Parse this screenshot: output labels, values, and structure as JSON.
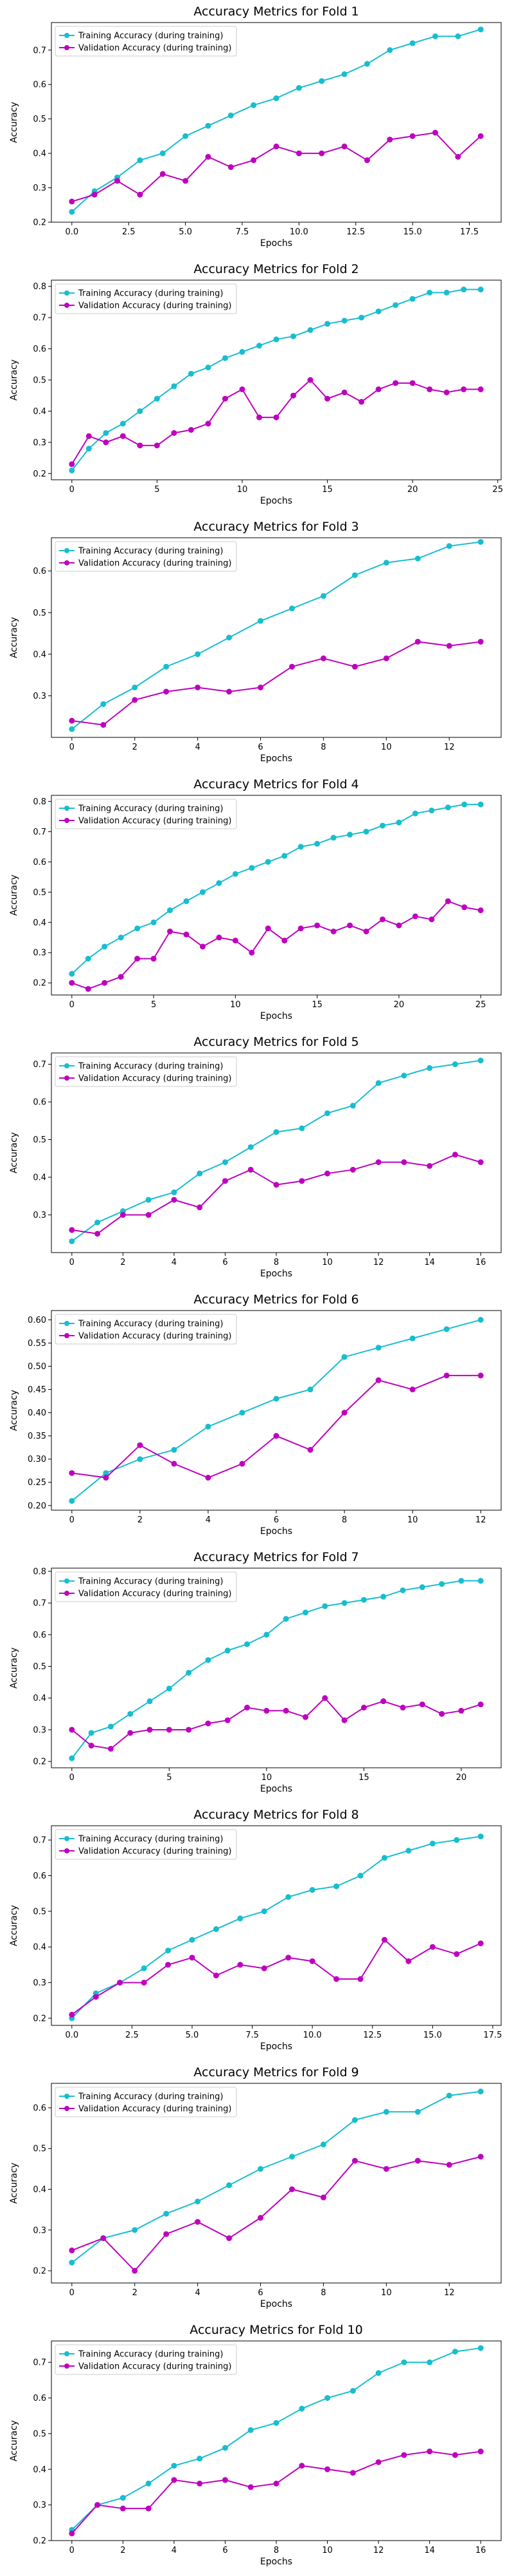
{
  "colors": {
    "train": "#17becf",
    "val": "#bf00bf"
  },
  "legend": {
    "train": "Training Accuracy (during training)",
    "val": "Validation Accuracy (during training)",
    "position": "upper-left"
  },
  "chart_data": [
    {
      "type": "line",
      "title": "Accuracy Metrics for Fold 1",
      "xlabel": "Epochs",
      "ylabel": "Accuracy",
      "xlim": [
        -0.9,
        18.9
      ],
      "ylim": [
        0.2,
        0.78
      ],
      "xticks": [
        0,
        2.5,
        5,
        7.5,
        10,
        12.5,
        15,
        17.5
      ],
      "xtick_labels": [
        "0.0",
        "2.5",
        "5.0",
        "7.5",
        "10.0",
        "12.5",
        "15.0",
        "17.5"
      ],
      "yticks": [
        0.2,
        0.3,
        0.4,
        0.5,
        0.6,
        0.7
      ],
      "ytick_labels": [
        "0.2",
        "0.3",
        "0.4",
        "0.5",
        "0.6",
        "0.7"
      ],
      "grid": false,
      "x": [
        0,
        1,
        2,
        3,
        4,
        5,
        6,
        7,
        8,
        9,
        10,
        11,
        12,
        13,
        14,
        15,
        16,
        17,
        18
      ],
      "series": [
        {
          "name": "Training Accuracy (during training)",
          "values": [
            0.23,
            0.29,
            0.33,
            0.38,
            0.4,
            0.45,
            0.48,
            0.51,
            0.54,
            0.56,
            0.59,
            0.61,
            0.63,
            0.66,
            0.7,
            0.72,
            0.74,
            0.74,
            0.76
          ]
        },
        {
          "name": "Validation Accuracy (during training)",
          "values": [
            0.26,
            0.28,
            0.32,
            0.28,
            0.34,
            0.32,
            0.39,
            0.36,
            0.38,
            0.42,
            0.4,
            0.4,
            0.42,
            0.38,
            0.44,
            0.45,
            0.46,
            0.39,
            0.45
          ]
        }
      ]
    },
    {
      "type": "line",
      "title": "Accuracy Metrics for Fold 2",
      "xlabel": "Epochs",
      "ylabel": "Accuracy",
      "xlim": [
        -1.2,
        25.2
      ],
      "ylim": [
        0.18,
        0.82
      ],
      "xticks": [
        0,
        5,
        10,
        15,
        20,
        25
      ],
      "xtick_labels": [
        "0",
        "5",
        "10",
        "15",
        "20",
        "25"
      ],
      "yticks": [
        0.2,
        0.3,
        0.4,
        0.5,
        0.6,
        0.7,
        0.8
      ],
      "ytick_labels": [
        "0.2",
        "0.3",
        "0.4",
        "0.5",
        "0.6",
        "0.7",
        "0.8"
      ],
      "grid": false,
      "x": [
        0,
        1,
        2,
        3,
        4,
        5,
        6,
        7,
        8,
        9,
        10,
        11,
        12,
        13,
        14,
        15,
        16,
        17,
        18,
        19,
        20,
        21,
        22,
        23,
        24
      ],
      "series": [
        {
          "name": "Training Accuracy (during training)",
          "values": [
            0.21,
            0.28,
            0.33,
            0.36,
            0.4,
            0.44,
            0.48,
            0.52,
            0.54,
            0.57,
            0.59,
            0.61,
            0.63,
            0.64,
            0.66,
            0.68,
            0.69,
            0.7,
            0.72,
            0.74,
            0.76,
            0.78,
            0.78,
            0.79,
            0.79
          ]
        },
        {
          "name": "Validation Accuracy (during training)",
          "values": [
            0.23,
            0.32,
            0.3,
            0.32,
            0.29,
            0.29,
            0.33,
            0.34,
            0.36,
            0.44,
            0.47,
            0.38,
            0.38,
            0.45,
            0.5,
            0.44,
            0.46,
            0.43,
            0.47,
            0.49,
            0.49,
            0.47,
            0.46,
            0.47,
            0.47
          ]
        }
      ]
    },
    {
      "type": "line",
      "title": "Accuracy Metrics for Fold 3",
      "xlabel": "Epochs",
      "ylabel": "Accuracy",
      "xlim": [
        -0.65,
        13.65
      ],
      "ylim": [
        0.2,
        0.68
      ],
      "xticks": [
        0,
        2,
        4,
        6,
        8,
        10,
        12
      ],
      "xtick_labels": [
        "0",
        "2",
        "4",
        "6",
        "8",
        "10",
        "12"
      ],
      "yticks": [
        0.3,
        0.4,
        0.5,
        0.6
      ],
      "ytick_labels": [
        "0.3",
        "0.4",
        "0.5",
        "0.6"
      ],
      "grid": false,
      "x": [
        0,
        1,
        2,
        3,
        4,
        5,
        6,
        7,
        8,
        9,
        10,
        11,
        12,
        13
      ],
      "series": [
        {
          "name": "Training Accuracy (during training)",
          "values": [
            0.22,
            0.28,
            0.32,
            0.37,
            0.4,
            0.44,
            0.48,
            0.51,
            0.54,
            0.59,
            0.62,
            0.63,
            0.66,
            0.67
          ]
        },
        {
          "name": "Validation Accuracy (during training)",
          "values": [
            0.24,
            0.23,
            0.29,
            0.31,
            0.32,
            0.31,
            0.32,
            0.37,
            0.39,
            0.37,
            0.39,
            0.43,
            0.42,
            0.43
          ]
        }
      ]
    },
    {
      "type": "line",
      "title": "Accuracy Metrics for Fold 4",
      "xlabel": "Epochs",
      "ylabel": "Accuracy",
      "xlim": [
        -1.25,
        26.25
      ],
      "ylim": [
        0.16,
        0.82
      ],
      "xticks": [
        0,
        5,
        10,
        15,
        20,
        25
      ],
      "xtick_labels": [
        "0",
        "5",
        "10",
        "15",
        "20",
        "25"
      ],
      "yticks": [
        0.2,
        0.3,
        0.4,
        0.5,
        0.6,
        0.7,
        0.8
      ],
      "ytick_labels": [
        "0.2",
        "0.3",
        "0.4",
        "0.5",
        "0.6",
        "0.7",
        "0.8"
      ],
      "grid": false,
      "x": [
        0,
        1,
        2,
        3,
        4,
        5,
        6,
        7,
        8,
        9,
        10,
        11,
        12,
        13,
        14,
        15,
        16,
        17,
        18,
        19,
        20,
        21,
        22,
        23,
        24,
        25
      ],
      "series": [
        {
          "name": "Training Accuracy (during training)",
          "values": [
            0.23,
            0.28,
            0.32,
            0.35,
            0.38,
            0.4,
            0.44,
            0.47,
            0.5,
            0.53,
            0.56,
            0.58,
            0.6,
            0.62,
            0.65,
            0.66,
            0.68,
            0.69,
            0.7,
            0.72,
            0.73,
            0.76,
            0.77,
            0.78,
            0.79,
            0.79
          ]
        },
        {
          "name": "Validation Accuracy (during training)",
          "values": [
            0.2,
            0.18,
            0.2,
            0.22,
            0.28,
            0.28,
            0.37,
            0.36,
            0.32,
            0.35,
            0.34,
            0.3,
            0.38,
            0.34,
            0.38,
            0.39,
            0.37,
            0.39,
            0.37,
            0.41,
            0.39,
            0.42,
            0.41,
            0.47,
            0.45,
            0.44
          ]
        }
      ]
    },
    {
      "type": "line",
      "title": "Accuracy Metrics for Fold 5",
      "xlabel": "Epochs",
      "ylabel": "Accuracy",
      "xlim": [
        -0.8,
        16.8
      ],
      "ylim": [
        0.2,
        0.73
      ],
      "xticks": [
        0,
        2,
        4,
        6,
        8,
        10,
        12,
        14,
        16
      ],
      "xtick_labels": [
        "0",
        "2",
        "4",
        "6",
        "8",
        "10",
        "12",
        "14",
        "16"
      ],
      "yticks": [
        0.3,
        0.4,
        0.5,
        0.6,
        0.7
      ],
      "ytick_labels": [
        "0.3",
        "0.4",
        "0.5",
        "0.6",
        "0.7"
      ],
      "grid": false,
      "x": [
        0,
        1,
        2,
        3,
        4,
        5,
        6,
        7,
        8,
        9,
        10,
        11,
        12,
        13,
        14,
        15,
        16
      ],
      "series": [
        {
          "name": "Training Accuracy (during training)",
          "values": [
            0.23,
            0.28,
            0.31,
            0.34,
            0.36,
            0.41,
            0.44,
            0.48,
            0.52,
            0.53,
            0.57,
            0.59,
            0.65,
            0.67,
            0.69,
            0.7,
            0.71
          ]
        },
        {
          "name": "Validation Accuracy (during training)",
          "values": [
            0.26,
            0.25,
            0.3,
            0.3,
            0.34,
            0.32,
            0.39,
            0.42,
            0.38,
            0.39,
            0.41,
            0.42,
            0.44,
            0.44,
            0.43,
            0.46,
            0.44
          ]
        }
      ]
    },
    {
      "type": "line",
      "title": "Accuracy Metrics for Fold 6",
      "xlabel": "Epochs",
      "ylabel": "Accuracy",
      "xlim": [
        -0.6,
        12.6
      ],
      "ylim": [
        0.19,
        0.62
      ],
      "xticks": [
        0,
        2,
        4,
        6,
        8,
        10,
        12
      ],
      "xtick_labels": [
        "0",
        "2",
        "4",
        "6",
        "8",
        "10",
        "12"
      ],
      "yticks": [
        0.2,
        0.25,
        0.3,
        0.35,
        0.4,
        0.45,
        0.5,
        0.55,
        0.6
      ],
      "ytick_labels": [
        "0.20",
        "0.25",
        "0.30",
        "0.35",
        "0.40",
        "0.45",
        "0.50",
        "0.55",
        "0.60"
      ],
      "grid": false,
      "x": [
        0,
        1,
        2,
        3,
        4,
        5,
        6,
        7,
        8,
        9,
        10,
        11,
        12
      ],
      "series": [
        {
          "name": "Training Accuracy (during training)",
          "values": [
            0.21,
            0.27,
            0.3,
            0.32,
            0.37,
            0.4,
            0.43,
            0.45,
            0.52,
            0.54,
            0.56,
            0.58,
            0.6
          ]
        },
        {
          "name": "Validation Accuracy (during training)",
          "values": [
            0.27,
            0.26,
            0.33,
            0.29,
            0.26,
            0.29,
            0.35,
            0.32,
            0.4,
            0.47,
            0.45,
            0.48,
            0.48
          ]
        }
      ]
    },
    {
      "type": "line",
      "title": "Accuracy Metrics for Fold 7",
      "xlabel": "Epochs",
      "ylabel": "Accuracy",
      "xlim": [
        -1.05,
        22.05
      ],
      "ylim": [
        0.18,
        0.81
      ],
      "xticks": [
        0,
        5,
        10,
        15,
        20
      ],
      "xtick_labels": [
        "0",
        "5",
        "10",
        "15",
        "20"
      ],
      "yticks": [
        0.2,
        0.3,
        0.4,
        0.5,
        0.6,
        0.7,
        0.8
      ],
      "ytick_labels": [
        "0.2",
        "0.3",
        "0.4",
        "0.5",
        "0.6",
        "0.7",
        "0.8"
      ],
      "grid": false,
      "x": [
        0,
        1,
        2,
        3,
        4,
        5,
        6,
        7,
        8,
        9,
        10,
        11,
        12,
        13,
        14,
        15,
        16,
        17,
        18,
        19,
        20,
        21
      ],
      "series": [
        {
          "name": "Training Accuracy (during training)",
          "values": [
            0.21,
            0.29,
            0.31,
            0.35,
            0.39,
            0.43,
            0.48,
            0.52,
            0.55,
            0.57,
            0.6,
            0.65,
            0.67,
            0.69,
            0.7,
            0.71,
            0.72,
            0.74,
            0.75,
            0.76,
            0.77,
            0.77
          ]
        },
        {
          "name": "Validation Accuracy (during training)",
          "values": [
            0.3,
            0.25,
            0.24,
            0.29,
            0.3,
            0.3,
            0.3,
            0.32,
            0.33,
            0.37,
            0.36,
            0.36,
            0.34,
            0.4,
            0.33,
            0.37,
            0.39,
            0.37,
            0.38,
            0.35,
            0.36,
            0.38
          ]
        }
      ]
    },
    {
      "type": "line",
      "title": "Accuracy Metrics for Fold 8",
      "xlabel": "Epochs",
      "ylabel": "Accuracy",
      "xlim": [
        -0.85,
        17.85
      ],
      "ylim": [
        0.18,
        0.74
      ],
      "xticks": [
        0,
        2.5,
        5,
        7.5,
        10,
        12.5,
        15,
        17.5
      ],
      "xtick_labels": [
        "0.0",
        "2.5",
        "5.0",
        "7.5",
        "10.0",
        "12.5",
        "15.0",
        "17.5"
      ],
      "yticks": [
        0.2,
        0.3,
        0.4,
        0.5,
        0.6,
        0.7
      ],
      "ytick_labels": [
        "0.2",
        "0.3",
        "0.4",
        "0.5",
        "0.6",
        "0.7"
      ],
      "grid": false,
      "x": [
        0,
        1,
        2,
        3,
        4,
        5,
        6,
        7,
        8,
        9,
        10,
        11,
        12,
        13,
        14,
        15,
        16,
        17
      ],
      "series": [
        {
          "name": "Training Accuracy (during training)",
          "values": [
            0.2,
            0.27,
            0.3,
            0.34,
            0.39,
            0.42,
            0.45,
            0.48,
            0.5,
            0.54,
            0.56,
            0.57,
            0.6,
            0.65,
            0.67,
            0.69,
            0.7,
            0.71
          ]
        },
        {
          "name": "Validation Accuracy (during training)",
          "values": [
            0.21,
            0.26,
            0.3,
            0.3,
            0.35,
            0.37,
            0.32,
            0.35,
            0.34,
            0.37,
            0.36,
            0.31,
            0.31,
            0.42,
            0.36,
            0.4,
            0.38,
            0.41
          ]
        }
      ]
    },
    {
      "type": "line",
      "title": "Accuracy Metrics for Fold 9",
      "xlabel": "Epochs",
      "ylabel": "Accuracy",
      "xlim": [
        -0.65,
        13.65
      ],
      "ylim": [
        0.17,
        0.66
      ],
      "xticks": [
        0,
        2,
        4,
        6,
        8,
        10,
        12
      ],
      "xtick_labels": [
        "0",
        "2",
        "4",
        "6",
        "8",
        "10",
        "12"
      ],
      "yticks": [
        0.2,
        0.3,
        0.4,
        0.5,
        0.6
      ],
      "ytick_labels": [
        "0.2",
        "0.3",
        "0.4",
        "0.5",
        "0.6"
      ],
      "grid": false,
      "x": [
        0,
        1,
        2,
        3,
        4,
        5,
        6,
        7,
        8,
        9,
        10,
        11,
        12,
        13
      ],
      "series": [
        {
          "name": "Training Accuracy (during training)",
          "values": [
            0.22,
            0.28,
            0.3,
            0.34,
            0.37,
            0.41,
            0.45,
            0.48,
            0.51,
            0.57,
            0.59,
            0.59,
            0.63,
            0.64
          ]
        },
        {
          "name": "Validation Accuracy (during training)",
          "values": [
            0.25,
            0.28,
            0.2,
            0.29,
            0.32,
            0.28,
            0.33,
            0.4,
            0.38,
            0.47,
            0.45,
            0.47,
            0.46,
            0.48
          ]
        }
      ]
    },
    {
      "type": "line",
      "title": "Accuracy Metrics for Fold 10",
      "xlabel": "Epochs",
      "ylabel": "Accuracy",
      "xlim": [
        -0.8,
        16.8
      ],
      "ylim": [
        0.2,
        0.76
      ],
      "xticks": [
        0,
        2,
        4,
        6,
        8,
        10,
        12,
        14,
        16
      ],
      "xtick_labels": [
        "0",
        "2",
        "4",
        "6",
        "8",
        "10",
        "12",
        "14",
        "16"
      ],
      "yticks": [
        0.2,
        0.3,
        0.4,
        0.5,
        0.6,
        0.7
      ],
      "ytick_labels": [
        "0.2",
        "0.3",
        "0.4",
        "0.5",
        "0.6",
        "0.7"
      ],
      "grid": false,
      "x": [
        0,
        1,
        2,
        3,
        4,
        5,
        6,
        7,
        8,
        9,
        10,
        11,
        12,
        13,
        14,
        15,
        16
      ],
      "series": [
        {
          "name": "Training Accuracy (during training)",
          "values": [
            0.23,
            0.3,
            0.32,
            0.36,
            0.41,
            0.43,
            0.46,
            0.51,
            0.53,
            0.57,
            0.6,
            0.62,
            0.67,
            0.7,
            0.7,
            0.73,
            0.74
          ]
        },
        {
          "name": "Validation Accuracy (during training)",
          "values": [
            0.22,
            0.3,
            0.29,
            0.29,
            0.37,
            0.36,
            0.37,
            0.35,
            0.36,
            0.41,
            0.4,
            0.39,
            0.42,
            0.44,
            0.45,
            0.44,
            0.45
          ]
        }
      ]
    }
  ]
}
